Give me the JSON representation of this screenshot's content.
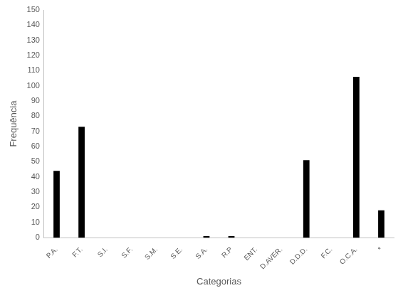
{
  "chart_data": {
    "type": "bar",
    "x_label": "Categorias",
    "y_label": "Frequência",
    "categories": [
      "P.A.",
      "F.T.",
      "S.I.",
      "S.F.",
      "S.M.",
      "S.E.",
      "S.A.",
      "R.P",
      "ENT.",
      "D.AVER.",
      "D.D.D.",
      "F.C.",
      "O.C.A.",
      "*"
    ],
    "values": [
      44,
      73,
      0,
      0,
      0,
      0,
      1,
      1,
      0,
      0,
      51,
      0,
      106,
      18
    ],
    "color": "#000000",
    "ylim": [
      0,
      150
    ],
    "yticks": [
      0,
      10,
      20,
      30,
      40,
      50,
      60,
      70,
      80,
      90,
      100,
      110,
      120,
      130,
      140,
      150
    ],
    "grid": false
  }
}
